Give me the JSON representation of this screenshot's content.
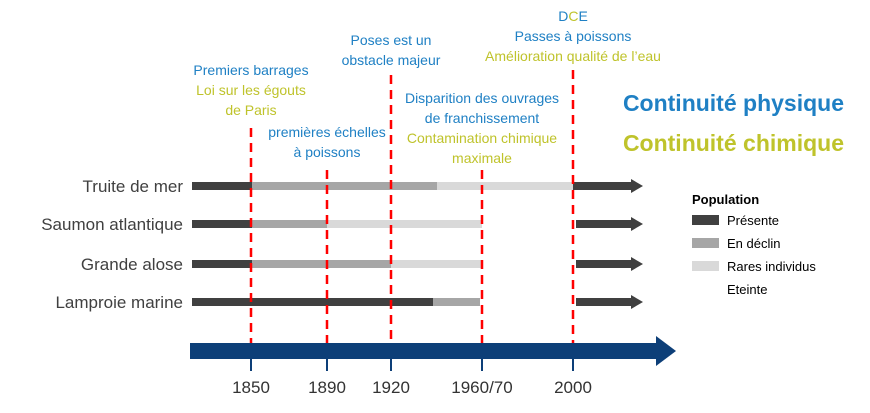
{
  "colors": {
    "physical": "#1f80c4",
    "chemical": "#bfc32b",
    "present": "#404040",
    "declining": "#a6a6a6",
    "rare": "#d9d9d9",
    "event_line": "#ff0000",
    "timeline": "#0d3f78"
  },
  "years": [
    "1850",
    "1890",
    "1920",
    "1960/70",
    "2000"
  ],
  "annotations": {
    "col_1850": {
      "line1": "Premiers barrages",
      "line2": "Loi sur les égouts",
      "line3": "de Paris"
    },
    "col_1890": {
      "line1": "premières échelles",
      "line2": "à poissons"
    },
    "col_1920": {
      "line1": "Poses est un",
      "line2": "obstacle majeur"
    },
    "col_1960": {
      "line1": "Disparition des ouvrages",
      "line2": "de franchissement",
      "line3": "Contamination chimique",
      "line4": "maximale"
    },
    "col_2000": {
      "dce_d": "D",
      "dce_c": "C",
      "dce_e": "E",
      "line2": "Passes à poissons",
      "line3": "Amélioration qualité de l’eau"
    }
  },
  "headings": {
    "physical": "Continuité physique",
    "chemical": "Continuité chimique"
  },
  "species": [
    {
      "name": "Truite de mer"
    },
    {
      "name": "Saumon atlantique"
    },
    {
      "name": "Grande alose"
    },
    {
      "name": "Lamproie marine"
    }
  ],
  "legend": {
    "title": "Population",
    "items": [
      {
        "label": "Présente",
        "status": "present"
      },
      {
        "label": "En déclin",
        "status": "declining"
      },
      {
        "label": "Rares individus",
        "status": "rare"
      },
      {
        "label": "Eteinte",
        "status": "extinct"
      }
    ]
  }
}
